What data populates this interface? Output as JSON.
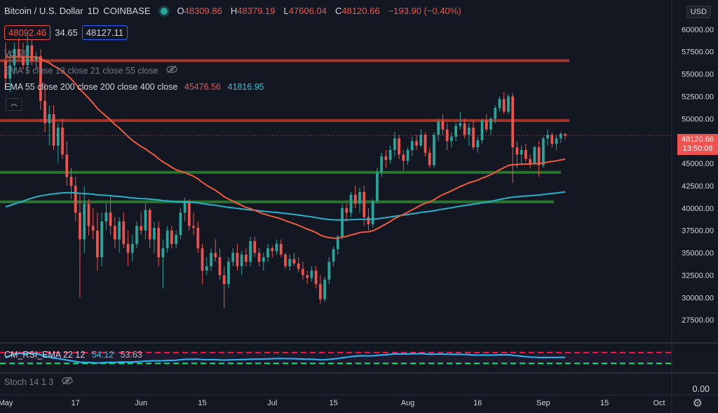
{
  "header": {
    "symbol": "Bitcoin / U.S. Dollar",
    "interval": "1D",
    "exchange": "COINBASE",
    "open_label": "O",
    "open": "48309.86",
    "high_label": "H",
    "high": "48379.19",
    "low_label": "L",
    "low": "47606.04",
    "close_label": "C",
    "close": "48120.66",
    "change": "−193.90 (−0.40%)"
  },
  "bid_ask": {
    "bid": "48092.46",
    "spread": "34.65",
    "ask": "48127.11"
  },
  "indicators": {
    "vol": "Vol 20",
    "ema_hidden": "EMA 5 close 13 close 21 close 55 close",
    "ema_main": "EMA 55 close 200 close 200 close 400 close",
    "ema_val1": "45476.56",
    "ema_val2": "41816.95",
    "rsi": "CM_RSI_EMA 22 12",
    "rsi_val1": "54.12",
    "rsi_val2": "53.63",
    "stoch": "Stoch 14 1 3"
  },
  "currency_button": "USD",
  "current_price_tag": {
    "price": "48120.66",
    "countdown": "13:50:08"
  },
  "stoch_axis_label": "0.00",
  "colors": {
    "up": "#26a69a",
    "down": "#ef5350",
    "ema55": "#f05a3c",
    "ema200": "#26b3c9",
    "resistance": "#c0392b",
    "support": "#2e7d32"
  },
  "chart_data": {
    "type": "candlestick",
    "x_ticks": [
      "May",
      "17",
      "Jun",
      "15",
      "Jul",
      "15",
      "Aug",
      "16",
      "Sep",
      "15",
      "Oct"
    ],
    "y_ticks": [
      27500,
      30000,
      32500,
      35000,
      37500,
      40000,
      42500,
      45000,
      47500,
      50000,
      52500,
      55000,
      57500,
      60000
    ],
    "ylim": [
      25000,
      62500
    ],
    "horizontal_levels": {
      "resistance": [
        56500,
        49800
      ],
      "support": [
        44000,
        40700
      ]
    },
    "ohlc": [
      [
        56500,
        58500,
        53500,
        54500
      ],
      [
        54500,
        57500,
        53000,
        56000
      ],
      [
        56000,
        58500,
        55000,
        57800
      ],
      [
        57800,
        59000,
        56500,
        57000
      ],
      [
        57000,
        58500,
        55500,
        56000
      ],
      [
        56000,
        59300,
        55000,
        58200
      ],
      [
        58200,
        58800,
        56000,
        56500
      ],
      [
        56500,
        57500,
        55500,
        57000
      ],
      [
        57000,
        57800,
        51000,
        52000
      ],
      [
        52000,
        54000,
        48500,
        49500
      ],
      [
        49500,
        51500,
        47000,
        50500
      ],
      [
        50500,
        51500,
        46500,
        47000
      ],
      [
        47000,
        49500,
        45000,
        49000
      ],
      [
        49000,
        50000,
        45500,
        46000
      ],
      [
        46000,
        47500,
        42500,
        43500
      ],
      [
        43500,
        44500,
        41000,
        42500
      ],
      [
        42500,
        43500,
        38500,
        39500
      ],
      [
        39500,
        41500,
        30000,
        36500
      ],
      [
        36500,
        42500,
        35000,
        40500
      ],
      [
        40500,
        41000,
        37000,
        38000
      ],
      [
        38000,
        40000,
        36500,
        37500
      ],
      [
        37500,
        39500,
        33000,
        34500
      ],
      [
        34500,
        39500,
        33500,
        38500
      ],
      [
        38500,
        40500,
        37500,
        39500
      ],
      [
        39500,
        41500,
        37000,
        38000
      ],
      [
        38000,
        39000,
        35500,
        36500
      ],
      [
        36500,
        39000,
        35000,
        38500
      ],
      [
        38500,
        39500,
        35500,
        36000
      ],
      [
        36000,
        37500,
        33500,
        35000
      ],
      [
        35000,
        37000,
        34000,
        36000
      ],
      [
        36000,
        38500,
        35500,
        38000
      ],
      [
        38000,
        39500,
        37000,
        37500
      ],
      [
        37500,
        40500,
        36500,
        39800
      ],
      [
        39800,
        40000,
        35500,
        36500
      ],
      [
        36500,
        38500,
        35000,
        37800
      ],
      [
        37800,
        38500,
        33500,
        34500
      ],
      [
        34500,
        36500,
        31000,
        35500
      ],
      [
        35500,
        38000,
        35000,
        37500
      ],
      [
        37500,
        38000,
        35500,
        36000
      ],
      [
        36000,
        37500,
        35500,
        37000
      ],
      [
        37000,
        40000,
        36500,
        39500
      ],
      [
        39500,
        41200,
        38500,
        40800
      ],
      [
        40800,
        41000,
        37500,
        38000
      ],
      [
        38000,
        39500,
        37000,
        37800
      ],
      [
        37800,
        38500,
        35000,
        35500
      ],
      [
        35500,
        36000,
        31500,
        33000
      ],
      [
        33000,
        34500,
        32500,
        33500
      ],
      [
        33500,
        35500,
        33000,
        35000
      ],
      [
        35000,
        36500,
        34000,
        34500
      ],
      [
        34500,
        35500,
        32000,
        32500
      ],
      [
        32500,
        33500,
        28800,
        31500
      ],
      [
        31500,
        34500,
        31000,
        34000
      ],
      [
        34000,
        35500,
        33500,
        35000
      ],
      [
        35000,
        36000,
        33000,
        33500
      ],
      [
        33500,
        35200,
        32500,
        34800
      ],
      [
        34800,
        35500,
        33500,
        34000
      ],
      [
        34000,
        36800,
        33500,
        36300
      ],
      [
        36300,
        36800,
        34500,
        35000
      ],
      [
        35000,
        35500,
        33500,
        34000
      ],
      [
        34000,
        35000,
        33000,
        34500
      ],
      [
        34500,
        36000,
        34000,
        35500
      ],
      [
        35500,
        35800,
        34500,
        35200
      ],
      [
        35200,
        36500,
        34800,
        36000
      ],
      [
        36000,
        36500,
        34500,
        34800
      ],
      [
        34800,
        35000,
        33200,
        33500
      ],
      [
        33500,
        34800,
        33000,
        34300
      ],
      [
        34300,
        35000,
        33500,
        33800
      ],
      [
        33800,
        34500,
        32800,
        33200
      ],
      [
        33200,
        34000,
        32000,
        32500
      ],
      [
        32500,
        33000,
        31500,
        32200
      ],
      [
        32200,
        33500,
        31800,
        33000
      ],
      [
        33000,
        33500,
        31000,
        31500
      ],
      [
        31500,
        32500,
        29300,
        29800
      ],
      [
        29800,
        32300,
        29500,
        32000
      ],
      [
        32000,
        34500,
        31500,
        34000
      ],
      [
        34000,
        35700,
        33500,
        35400
      ],
      [
        35400,
        37000,
        34800,
        36800
      ],
      [
        36800,
        40500,
        36500,
        40000
      ],
      [
        40000,
        40500,
        38500,
        39500
      ],
      [
        39500,
        41800,
        39000,
        41500
      ],
      [
        41500,
        42500,
        40000,
        40500
      ],
      [
        40500,
        42300,
        39500,
        41800
      ],
      [
        41800,
        42500,
        38000,
        39000
      ],
      [
        39000,
        40000,
        37500,
        38200
      ],
      [
        38200,
        41000,
        37800,
        40800
      ],
      [
        40800,
        44500,
        40500,
        44000
      ],
      [
        44000,
        46200,
        43500,
        45800
      ],
      [
        45800,
        46500,
        44500,
        45400
      ],
      [
        45400,
        47000,
        45000,
        46500
      ],
      [
        46500,
        48500,
        45800,
        47800
      ],
      [
        47800,
        48200,
        45500,
        46000
      ],
      [
        46000,
        46500,
        44200,
        45300
      ],
      [
        45300,
        46800,
        44800,
        46500
      ],
      [
        46500,
        48000,
        45800,
        47500
      ],
      [
        47500,
        48200,
        46500,
        47000
      ],
      [
        47000,
        48800,
        46800,
        48200
      ],
      [
        48200,
        48500,
        45800,
        46200
      ],
      [
        46200,
        46800,
        44500,
        44800
      ],
      [
        44800,
        48500,
        44500,
        48200
      ],
      [
        48200,
        50000,
        47500,
        49700
      ],
      [
        49700,
        50500,
        48200,
        48800
      ],
      [
        48800,
        49500,
        46500,
        47500
      ],
      [
        47500,
        48500,
        46800,
        48000
      ],
      [
        48000,
        49600,
        47500,
        49200
      ],
      [
        49200,
        50800,
        48800,
        49500
      ],
      [
        49500,
        50000,
        47800,
        48200
      ],
      [
        48200,
        49500,
        47000,
        49000
      ],
      [
        49000,
        49800,
        46500,
        46800
      ],
      [
        46800,
        48000,
        46200,
        47600
      ],
      [
        47600,
        50000,
        47200,
        49800
      ],
      [
        49800,
        50500,
        48500,
        48800
      ],
      [
        48800,
        50200,
        48200,
        50000
      ],
      [
        50000,
        51500,
        49500,
        51200
      ],
      [
        51200,
        52500,
        50800,
        52200
      ],
      [
        52200,
        53000,
        50500,
        50800
      ],
      [
        50800,
        52800,
        50500,
        52500
      ],
      [
        52500,
        52900,
        42800,
        46800
      ],
      [
        46800,
        47500,
        44500,
        46000
      ],
      [
        46000,
        47000,
        44800,
        46500
      ],
      [
        46500,
        47200,
        45200,
        45500
      ],
      [
        45500,
        46000,
        44400,
        45000
      ],
      [
        45000,
        47000,
        44800,
        46800
      ],
      [
        46800,
        47500,
        43500,
        44800
      ],
      [
        44800,
        48000,
        44500,
        47800
      ],
      [
        47800,
        48800,
        47000,
        48200
      ],
      [
        48200,
        48500,
        46800,
        47200
      ],
      [
        47200,
        48200,
        46500,
        47800
      ],
      [
        47800,
        48500,
        47300,
        48300
      ],
      [
        48300,
        48400,
        47600,
        48120
      ]
    ],
    "ema55_value": 45476.56,
    "ema200_value": 41816.95,
    "rsi_levels": [
      70,
      30
    ]
  }
}
